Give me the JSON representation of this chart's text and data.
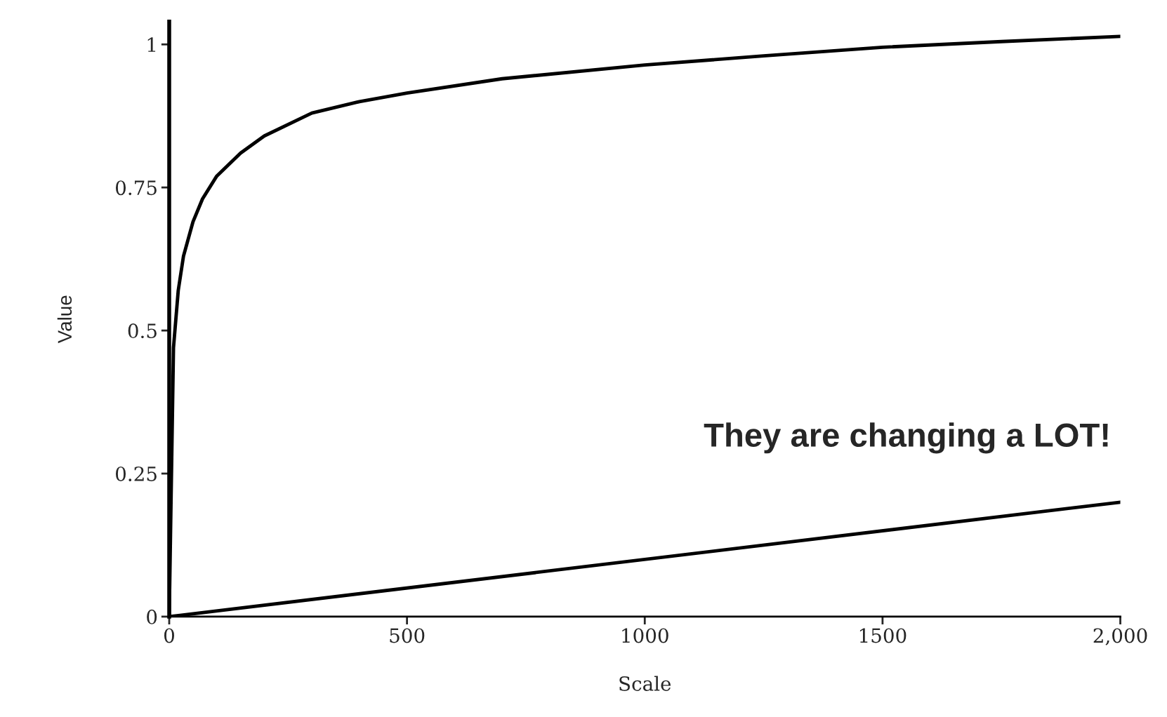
{
  "chart_data": {
    "type": "line",
    "xlabel": "Scale",
    "ylabel": "Value",
    "annotations": [
      "They are changing a LOT!"
    ],
    "series": [
      {
        "color": "#000000",
        "x": [
          0,
          9,
          19,
          30,
          50,
          70,
          100,
          150,
          200,
          300,
          400,
          500,
          700,
          1000,
          1250,
          1500,
          1750,
          2000
        ],
        "values": [
          0,
          0.47,
          0.57,
          0.63,
          0.69,
          0.73,
          0.77,
          0.81,
          0.84,
          0.88,
          0.9,
          0.915,
          0.94,
          0.964,
          0.98,
          0.995,
          1.005,
          1.014
        ]
      },
      {
        "color": "#000000",
        "x": [
          0,
          2000
        ],
        "values": [
          0,
          0.2
        ]
      }
    ],
    "xlim": [
      0,
      2000
    ],
    "ylim": [
      0,
      1.04
    ],
    "xticks": [
      0,
      500,
      1000,
      1500,
      {
        "value": 2000,
        "label": "2,000"
      }
    ],
    "yticks": [
      0,
      0.25,
      0.5,
      0.75,
      1
    ],
    "grid": false,
    "marker": "none",
    "line_style": "solid"
  }
}
